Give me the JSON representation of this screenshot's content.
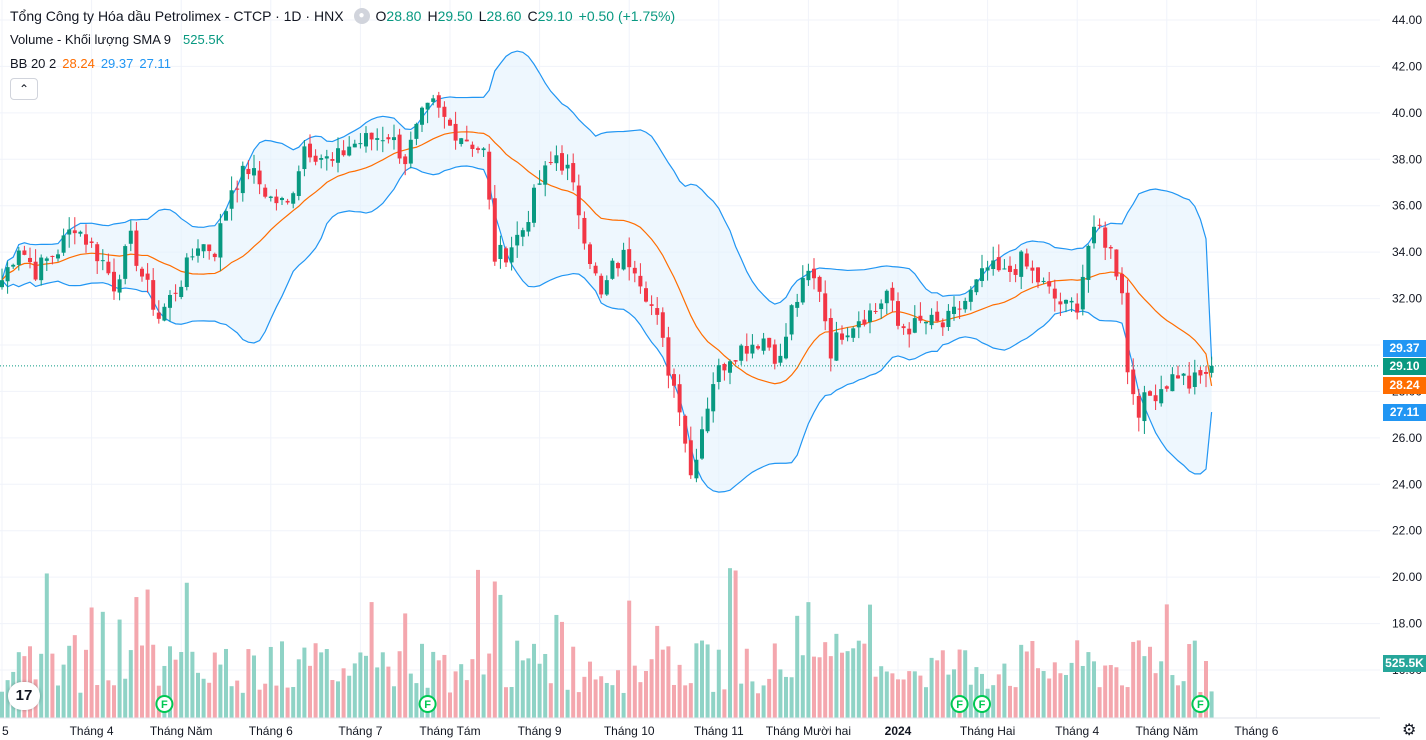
{
  "legend": {
    "title": "Tổng Công ty Hóa dầu Petrolimex - CTCP · 1D · HNX",
    "o_label": "O",
    "o": "28.80",
    "h_label": "H",
    "h": "29.50",
    "l_label": "L",
    "l": "28.60",
    "c_label": "C",
    "c": "29.10",
    "change": "+0.50 (+1.75%)",
    "volume_label": "Volume - Khối lượng SMA 9",
    "volume_value": "525.5K",
    "bb_label": "BB 20 2",
    "bb_basis": "28.24",
    "bb_upper": "29.37",
    "bb_lower": "27.11",
    "collapse_icon": "chevron-up"
  },
  "axis_tags": {
    "upper": "29.37",
    "last": "29.10",
    "basis": "28.24",
    "lower": "27.11",
    "volume": "525.5K"
  },
  "colors": {
    "up": "#089981",
    "down": "#f23645",
    "up_vol": "#8fd3c6",
    "down_vol": "#f4a7ae",
    "basis": "#ff6d00",
    "band": "#2196f3",
    "band_fill": "#e3f2fd",
    "event": "#00c853"
  },
  "chart_data": {
    "type": "candlestick",
    "title": "Tổng Công ty Hóa dầu Petrolimex - CTCP · 1D · HNX",
    "y_axis": {
      "min": 16,
      "max": 44,
      "ticks": [
        "44.00",
        "42.00",
        "40.00",
        "38.00",
        "36.00",
        "34.00",
        "32.00",
        "30.00",
        "28.00",
        "26.00",
        "24.00",
        "22.00",
        "20.00",
        "18.00",
        "16.00"
      ]
    },
    "x_axis": {
      "ticks": [
        "5",
        "Tháng 4",
        "Tháng Năm",
        "Tháng 6",
        "Tháng 7",
        "Tháng Tám",
        "Tháng 9",
        "Tháng 10",
        "Tháng 11",
        "Tháng Mười hai",
        "2024",
        "Tháng Hai",
        "Tháng 4",
        "Tháng Năm",
        "Tháng 6"
      ],
      "tick_index": [
        0,
        16,
        32,
        48,
        64,
        80,
        96,
        112,
        128,
        144,
        160,
        176,
        192,
        208,
        224
      ]
    },
    "last": {
      "open": 28.8,
      "high": 29.5,
      "low": 28.6,
      "close": 29.1,
      "change": 0.5,
      "change_pct": 1.75
    },
    "bollinger": {
      "length": 20,
      "mult": 2,
      "basis": 28.24,
      "upper": 29.37,
      "lower": 27.11
    },
    "volume_sma9": "525.5K",
    "event_markers": {
      "label": "F",
      "index": [
        29,
        76,
        171,
        175,
        214
      ]
    },
    "close_anchors": [
      [
        0,
        32.8
      ],
      [
        3,
        34.3
      ],
      [
        6,
        33.2
      ],
      [
        10,
        34.1
      ],
      [
        13,
        35.2
      ],
      [
        18,
        33.6
      ],
      [
        20,
        32.6
      ],
      [
        23,
        34.5
      ],
      [
        25,
        33.0
      ],
      [
        28,
        31.2
      ],
      [
        32,
        32.8
      ],
      [
        35,
        34.4
      ],
      [
        38,
        34.1
      ],
      [
        41,
        36.8
      ],
      [
        44,
        37.6
      ],
      [
        48,
        36.3
      ],
      [
        51,
        36.0
      ],
      [
        54,
        38.6
      ],
      [
        56,
        38.3
      ],
      [
        59,
        37.8
      ],
      [
        62,
        38.6
      ],
      [
        66,
        38.9
      ],
      [
        69,
        39.1
      ],
      [
        72,
        38.0
      ],
      [
        75,
        39.8
      ],
      [
        77,
        40.3
      ],
      [
        80,
        39.4
      ],
      [
        83,
        38.9
      ],
      [
        86,
        38.3
      ],
      [
        88,
        33.8
      ],
      [
        90,
        34.0
      ],
      [
        93,
        35.0
      ],
      [
        96,
        37.0
      ],
      [
        99,
        38.2
      ],
      [
        101,
        37.5
      ],
      [
        103,
        35.8
      ],
      [
        105,
        33.8
      ],
      [
        107,
        32.0
      ],
      [
        109,
        33.3
      ],
      [
        111,
        33.8
      ],
      [
        113,
        33.5
      ],
      [
        115,
        32.3
      ],
      [
        117,
        31.0
      ],
      [
        119,
        29.0
      ],
      [
        121,
        27.5
      ],
      [
        123,
        24.4
      ],
      [
        125,
        26.5
      ],
      [
        127,
        28.5
      ],
      [
        130,
        29.6
      ],
      [
        133,
        30.0
      ],
      [
        136,
        30.3
      ],
      [
        139,
        29.3
      ],
      [
        141,
        31.5
      ],
      [
        144,
        33.0
      ],
      [
        146,
        32.5
      ],
      [
        148,
        29.8
      ],
      [
        150,
        30.6
      ],
      [
        153,
        31.2
      ],
      [
        156,
        31.5
      ],
      [
        158,
        32.3
      ],
      [
        160,
        30.8
      ],
      [
        163,
        30.8
      ],
      [
        165,
        31.0
      ],
      [
        168,
        30.8
      ],
      [
        170,
        31.3
      ],
      [
        173,
        32.2
      ],
      [
        176,
        33.3
      ],
      [
        179,
        33.0
      ],
      [
        182,
        33.6
      ],
      [
        185,
        32.8
      ],
      [
        188,
        32.0
      ],
      [
        190,
        31.6
      ],
      [
        192,
        31.8
      ],
      [
        194,
        34.3
      ],
      [
        196,
        35.0
      ],
      [
        198,
        34.0
      ],
      [
        200,
        32.5
      ],
      [
        201,
        28.8
      ],
      [
        203,
        27.3
      ],
      [
        205,
        27.8
      ],
      [
        208,
        28.4
      ],
      [
        210,
        28.8
      ],
      [
        212,
        28.3
      ],
      [
        214,
        28.6
      ],
      [
        216,
        29.1
      ]
    ],
    "volume_unit": "thousand shares",
    "volume_max": 900
  }
}
